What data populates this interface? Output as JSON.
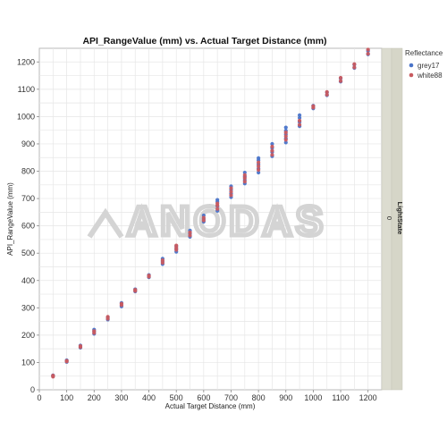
{
  "chart_data": {
    "type": "scatter",
    "title": "API_RangeValue (mm) vs. Actual Target Distance (mm)",
    "xlabel": "Actual Target Distance (mm)",
    "ylabel": "API_RangeValue (mm)",
    "xlim": [
      0,
      1250
    ],
    "ylim": [
      0,
      1250
    ],
    "xticks": [
      0,
      100,
      200,
      300,
      400,
      500,
      600,
      700,
      800,
      900,
      1000,
      1100,
      1200
    ],
    "yticks": [
      0,
      100,
      200,
      300,
      400,
      500,
      600,
      700,
      800,
      900,
      1000,
      1100,
      1200
    ],
    "grid": true,
    "legend": {
      "title": "Reflectance",
      "position": "top-right"
    },
    "facet_label": {
      "name": "LightState",
      "value": "0"
    },
    "watermark": "ANODAS",
    "series": [
      {
        "name": "grey17",
        "color": "#4a74c9",
        "points": [
          {
            "x": 50,
            "y": 50
          },
          {
            "x": 50,
            "y": 53
          },
          {
            "x": 100,
            "y": 102
          },
          {
            "x": 100,
            "y": 108
          },
          {
            "x": 150,
            "y": 154
          },
          {
            "x": 150,
            "y": 162
          },
          {
            "x": 200,
            "y": 205
          },
          {
            "x": 200,
            "y": 213
          },
          {
            "x": 200,
            "y": 220
          },
          {
            "x": 250,
            "y": 257
          },
          {
            "x": 250,
            "y": 265
          },
          {
            "x": 300,
            "y": 305
          },
          {
            "x": 300,
            "y": 318
          },
          {
            "x": 350,
            "y": 360
          },
          {
            "x": 350,
            "y": 368
          },
          {
            "x": 400,
            "y": 412
          },
          {
            "x": 400,
            "y": 420
          },
          {
            "x": 450,
            "y": 460
          },
          {
            "x": 450,
            "y": 470
          },
          {
            "x": 450,
            "y": 480
          },
          {
            "x": 500,
            "y": 505
          },
          {
            "x": 500,
            "y": 515
          },
          {
            "x": 500,
            "y": 525
          },
          {
            "x": 550,
            "y": 560
          },
          {
            "x": 550,
            "y": 572
          },
          {
            "x": 550,
            "y": 583
          },
          {
            "x": 600,
            "y": 615
          },
          {
            "x": 600,
            "y": 625
          },
          {
            "x": 600,
            "y": 638
          },
          {
            "x": 650,
            "y": 655
          },
          {
            "x": 650,
            "y": 672
          },
          {
            "x": 650,
            "y": 688
          },
          {
            "x": 650,
            "y": 695
          },
          {
            "x": 700,
            "y": 705
          },
          {
            "x": 700,
            "y": 718
          },
          {
            "x": 700,
            "y": 732
          },
          {
            "x": 700,
            "y": 745
          },
          {
            "x": 750,
            "y": 755
          },
          {
            "x": 750,
            "y": 768
          },
          {
            "x": 750,
            "y": 780
          },
          {
            "x": 750,
            "y": 795
          },
          {
            "x": 800,
            "y": 795
          },
          {
            "x": 800,
            "y": 810
          },
          {
            "x": 800,
            "y": 825
          },
          {
            "x": 800,
            "y": 840
          },
          {
            "x": 800,
            "y": 848
          },
          {
            "x": 850,
            "y": 855
          },
          {
            "x": 850,
            "y": 870
          },
          {
            "x": 850,
            "y": 885
          },
          {
            "x": 850,
            "y": 900
          },
          {
            "x": 900,
            "y": 905
          },
          {
            "x": 900,
            "y": 920
          },
          {
            "x": 900,
            "y": 935
          },
          {
            "x": 900,
            "y": 948
          },
          {
            "x": 900,
            "y": 960
          },
          {
            "x": 950,
            "y": 965
          },
          {
            "x": 950,
            "y": 980
          },
          {
            "x": 950,
            "y": 995
          },
          {
            "x": 950,
            "y": 1005
          },
          {
            "x": 1000,
            "y": 1030
          },
          {
            "x": 1000,
            "y": 1040
          },
          {
            "x": 1050,
            "y": 1078
          },
          {
            "x": 1050,
            "y": 1088
          },
          {
            "x": 1100,
            "y": 1128
          },
          {
            "x": 1100,
            "y": 1140
          },
          {
            "x": 1150,
            "y": 1178
          },
          {
            "x": 1150,
            "y": 1190
          },
          {
            "x": 1200,
            "y": 1228
          },
          {
            "x": 1200,
            "y": 1240
          }
        ]
      },
      {
        "name": "white88",
        "color": "#c85a5f",
        "points": [
          {
            "x": 50,
            "y": 48
          },
          {
            "x": 50,
            "y": 52
          },
          {
            "x": 100,
            "y": 104
          },
          {
            "x": 100,
            "y": 106
          },
          {
            "x": 150,
            "y": 156
          },
          {
            "x": 150,
            "y": 160
          },
          {
            "x": 200,
            "y": 208
          },
          {
            "x": 200,
            "y": 215
          },
          {
            "x": 250,
            "y": 260
          },
          {
            "x": 250,
            "y": 267
          },
          {
            "x": 300,
            "y": 310
          },
          {
            "x": 300,
            "y": 315
          },
          {
            "x": 350,
            "y": 362
          },
          {
            "x": 350,
            "y": 366
          },
          {
            "x": 400,
            "y": 414
          },
          {
            "x": 400,
            "y": 418
          },
          {
            "x": 450,
            "y": 465
          },
          {
            "x": 450,
            "y": 474
          },
          {
            "x": 500,
            "y": 512
          },
          {
            "x": 500,
            "y": 520
          },
          {
            "x": 500,
            "y": 528
          },
          {
            "x": 550,
            "y": 565
          },
          {
            "x": 550,
            "y": 576
          },
          {
            "x": 600,
            "y": 620
          },
          {
            "x": 600,
            "y": 630
          },
          {
            "x": 650,
            "y": 662
          },
          {
            "x": 650,
            "y": 675
          },
          {
            "x": 650,
            "y": 682
          },
          {
            "x": 700,
            "y": 712
          },
          {
            "x": 700,
            "y": 725
          },
          {
            "x": 700,
            "y": 738
          },
          {
            "x": 750,
            "y": 762
          },
          {
            "x": 750,
            "y": 775
          },
          {
            "x": 750,
            "y": 786
          },
          {
            "x": 800,
            "y": 805
          },
          {
            "x": 800,
            "y": 818
          },
          {
            "x": 800,
            "y": 832
          },
          {
            "x": 850,
            "y": 860
          },
          {
            "x": 850,
            "y": 875
          },
          {
            "x": 850,
            "y": 890
          },
          {
            "x": 900,
            "y": 915
          },
          {
            "x": 900,
            "y": 928
          },
          {
            "x": 900,
            "y": 942
          },
          {
            "x": 950,
            "y": 970
          },
          {
            "x": 950,
            "y": 985
          },
          {
            "x": 1000,
            "y": 1033
          },
          {
            "x": 1000,
            "y": 1038
          },
          {
            "x": 1050,
            "y": 1080
          },
          {
            "x": 1050,
            "y": 1090
          },
          {
            "x": 1100,
            "y": 1130
          },
          {
            "x": 1100,
            "y": 1142
          },
          {
            "x": 1150,
            "y": 1180
          },
          {
            "x": 1150,
            "y": 1192
          },
          {
            "x": 1200,
            "y": 1230
          },
          {
            "x": 1200,
            "y": 1245
          }
        ]
      }
    ]
  }
}
